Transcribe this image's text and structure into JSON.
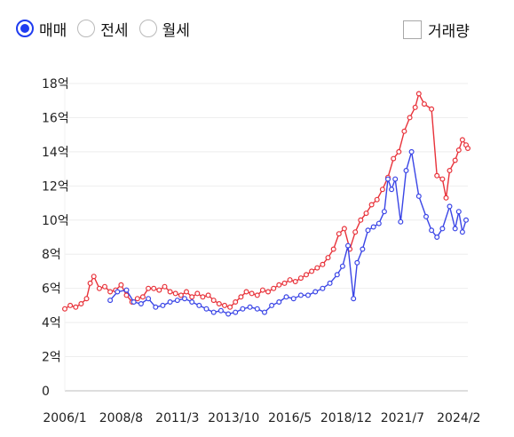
{
  "filters": {
    "deal_types": [
      {
        "label": "매매",
        "checked": true
      },
      {
        "label": "전세",
        "checked": false
      },
      {
        "label": "월세",
        "checked": false
      }
    ],
    "volume_toggle": {
      "label": "거래량",
      "checked": false
    }
  },
  "chart_data": {
    "type": "line",
    "x_tick_labels": [
      "2006/1",
      "2008/8",
      "2011/3",
      "2013/10",
      "2016/5",
      "2018/12",
      "2021/7",
      "2024/2"
    ],
    "x_range": [
      "2006-01",
      "2024-07"
    ],
    "y_tick_labels": [
      "0",
      "2억",
      "4억",
      "6억",
      "8억",
      "10억",
      "12억",
      "14억",
      "16억",
      "18억"
    ],
    "y_range": [
      0,
      18
    ],
    "grid": true,
    "series": [
      {
        "color": "#e8323a",
        "points": [
          [
            "2006-01",
            4.8
          ],
          [
            "2006-04",
            5.0
          ],
          [
            "2006-07",
            4.9
          ],
          [
            "2006-10",
            5.1
          ],
          [
            "2007-01",
            5.4
          ],
          [
            "2007-03",
            6.3
          ],
          [
            "2007-05",
            6.7
          ],
          [
            "2007-08",
            6.0
          ],
          [
            "2007-11",
            6.1
          ],
          [
            "2008-02",
            5.8
          ],
          [
            "2008-05",
            5.9
          ],
          [
            "2008-08",
            6.2
          ],
          [
            "2008-11",
            5.6
          ],
          [
            "2009-02",
            5.2
          ],
          [
            "2009-05",
            5.4
          ],
          [
            "2009-08",
            5.5
          ],
          [
            "2009-11",
            6.0
          ],
          [
            "2010-02",
            6.0
          ],
          [
            "2010-05",
            5.9
          ],
          [
            "2010-08",
            6.1
          ],
          [
            "2010-11",
            5.8
          ],
          [
            "2011-02",
            5.7
          ],
          [
            "2011-05",
            5.6
          ],
          [
            "2011-08",
            5.8
          ],
          [
            "2011-11",
            5.5
          ],
          [
            "2012-02",
            5.7
          ],
          [
            "2012-05",
            5.5
          ],
          [
            "2012-08",
            5.6
          ],
          [
            "2012-11",
            5.3
          ],
          [
            "2013-02",
            5.1
          ],
          [
            "2013-05",
            5.0
          ],
          [
            "2013-08",
            4.9
          ],
          [
            "2013-11",
            5.2
          ],
          [
            "2014-02",
            5.5
          ],
          [
            "2014-05",
            5.8
          ],
          [
            "2014-08",
            5.7
          ],
          [
            "2014-11",
            5.6
          ],
          [
            "2015-02",
            5.9
          ],
          [
            "2015-05",
            5.8
          ],
          [
            "2015-08",
            6.0
          ],
          [
            "2015-11",
            6.2
          ],
          [
            "2016-02",
            6.3
          ],
          [
            "2016-05",
            6.5
          ],
          [
            "2016-08",
            6.4
          ],
          [
            "2016-11",
            6.6
          ],
          [
            "2017-02",
            6.8
          ],
          [
            "2017-05",
            7.0
          ],
          [
            "2017-08",
            7.2
          ],
          [
            "2017-11",
            7.4
          ],
          [
            "2018-02",
            7.8
          ],
          [
            "2018-05",
            8.3
          ],
          [
            "2018-08",
            9.2
          ],
          [
            "2018-11",
            9.5
          ],
          [
            "2019-02",
            8.3
          ],
          [
            "2019-05",
            9.3
          ],
          [
            "2019-08",
            10.0
          ],
          [
            "2019-11",
            10.4
          ],
          [
            "2020-02",
            10.9
          ],
          [
            "2020-05",
            11.2
          ],
          [
            "2020-08",
            11.8
          ],
          [
            "2020-11",
            12.5
          ],
          [
            "2021-02",
            13.6
          ],
          [
            "2021-05",
            14.0
          ],
          [
            "2021-08",
            15.2
          ],
          [
            "2021-11",
            16.0
          ],
          [
            "2022-02",
            16.6
          ],
          [
            "2022-04",
            17.4
          ],
          [
            "2022-07",
            16.8
          ],
          [
            "2022-11",
            16.5
          ],
          [
            "2023-02",
            12.6
          ],
          [
            "2023-05",
            12.4
          ],
          [
            "2023-07",
            11.3
          ],
          [
            "2023-09",
            12.9
          ],
          [
            "2023-12",
            13.5
          ],
          [
            "2024-02",
            14.1
          ],
          [
            "2024-04",
            14.7
          ],
          [
            "2024-06",
            14.4
          ],
          [
            "2024-07",
            14.2
          ]
        ]
      },
      {
        "color": "#3a45e6",
        "points": [
          [
            "2008-02",
            5.3
          ],
          [
            "2008-06",
            5.8
          ],
          [
            "2008-11",
            5.9
          ],
          [
            "2009-03",
            5.2
          ],
          [
            "2009-07",
            5.1
          ],
          [
            "2009-11",
            5.4
          ],
          [
            "2010-03",
            4.9
          ],
          [
            "2010-07",
            5.0
          ],
          [
            "2010-11",
            5.2
          ],
          [
            "2011-03",
            5.3
          ],
          [
            "2011-07",
            5.4
          ],
          [
            "2011-11",
            5.2
          ],
          [
            "2012-03",
            5.0
          ],
          [
            "2012-07",
            4.8
          ],
          [
            "2012-11",
            4.6
          ],
          [
            "2013-03",
            4.7
          ],
          [
            "2013-07",
            4.5
          ],
          [
            "2013-11",
            4.6
          ],
          [
            "2014-03",
            4.8
          ],
          [
            "2014-07",
            4.9
          ],
          [
            "2014-11",
            4.8
          ],
          [
            "2015-03",
            4.6
          ],
          [
            "2015-07",
            5.0
          ],
          [
            "2015-11",
            5.2
          ],
          [
            "2016-03",
            5.5
          ],
          [
            "2016-07",
            5.4
          ],
          [
            "2016-11",
            5.6
          ],
          [
            "2017-03",
            5.6
          ],
          [
            "2017-07",
            5.8
          ],
          [
            "2017-11",
            6.0
          ],
          [
            "2018-03",
            6.3
          ],
          [
            "2018-07",
            6.8
          ],
          [
            "2018-10",
            7.3
          ],
          [
            "2019-01",
            8.5
          ],
          [
            "2019-04",
            5.4
          ],
          [
            "2019-06",
            7.5
          ],
          [
            "2019-09",
            8.3
          ],
          [
            "2019-12",
            9.4
          ],
          [
            "2020-03",
            9.6
          ],
          [
            "2020-06",
            9.8
          ],
          [
            "2020-09",
            10.5
          ],
          [
            "2020-11",
            12.4
          ],
          [
            "2021-01",
            11.8
          ],
          [
            "2021-03",
            12.4
          ],
          [
            "2021-06",
            9.9
          ],
          [
            "2021-09",
            12.9
          ],
          [
            "2021-12",
            14.0
          ],
          [
            "2022-04",
            11.4
          ],
          [
            "2022-08",
            10.2
          ],
          [
            "2022-11",
            9.4
          ],
          [
            "2023-02",
            9.0
          ],
          [
            "2023-05",
            9.5
          ],
          [
            "2023-09",
            10.8
          ],
          [
            "2023-12",
            9.5
          ],
          [
            "2024-02",
            10.5
          ],
          [
            "2024-04",
            9.3
          ],
          [
            "2024-06",
            10.0
          ]
        ]
      }
    ]
  }
}
